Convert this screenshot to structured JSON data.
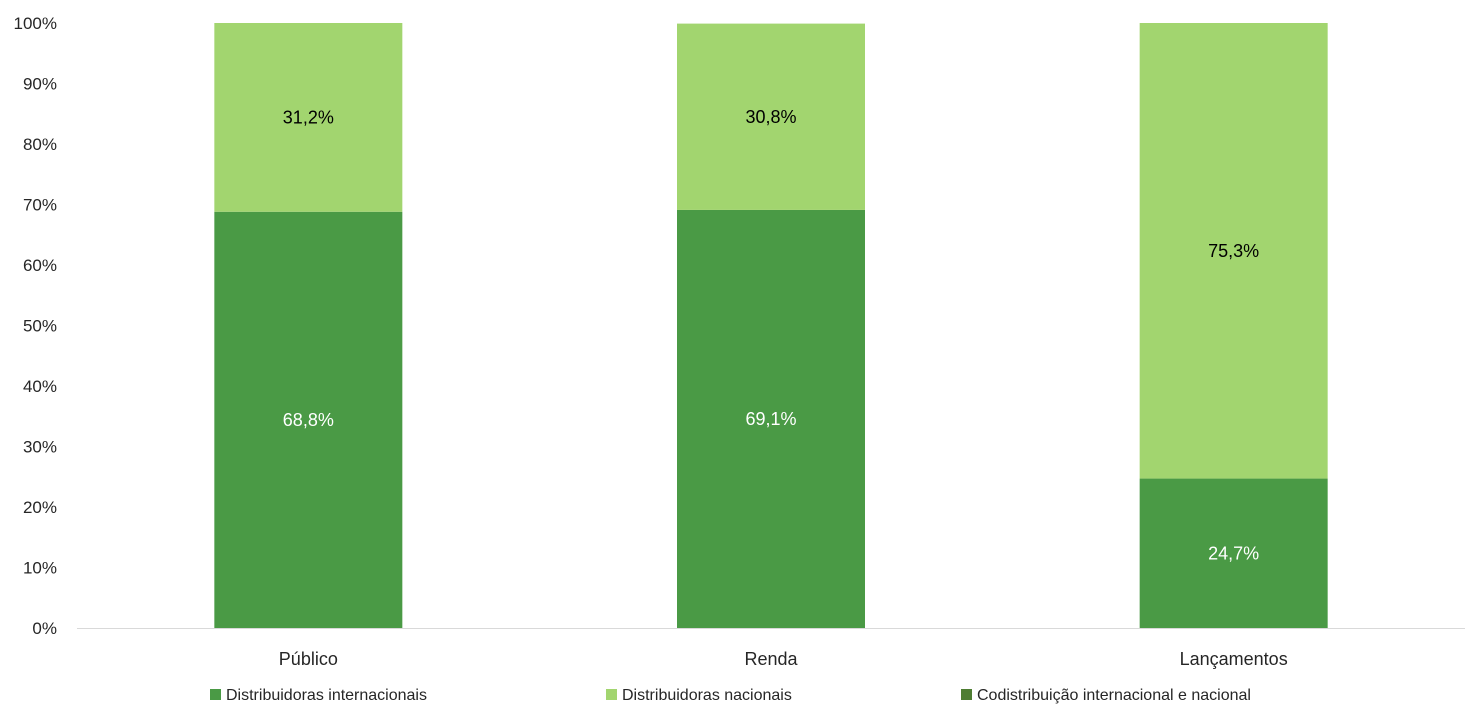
{
  "chart_data": {
    "type": "bar",
    "stacked": true,
    "percent_stacked": true,
    "categories": [
      "Público",
      "Renda",
      "Lançamentos"
    ],
    "series": [
      {
        "name": "Distribuidoras internacionais",
        "values": [
          68.8,
          69.1,
          24.7
        ],
        "labels": [
          "68,8%",
          "69,1%",
          "24,7%"
        ],
        "color": "#4a9a45",
        "label_color": "#ffffff"
      },
      {
        "name": "Distribuidoras nacionais",
        "values": [
          31.2,
          30.8,
          75.3
        ],
        "labels": [
          "31,2%",
          "30,8%",
          "75,3%"
        ],
        "color": "#a2d56f",
        "label_color": "#000000"
      },
      {
        "name": "Codistribuição internacional e nacional",
        "values": [
          0,
          0,
          0
        ],
        "labels": [
          "",
          "",
          ""
        ],
        "color": "#4e7d32",
        "label_color": "#ffffff"
      }
    ],
    "y_ticks": [
      "0%",
      "10%",
      "20%",
      "30%",
      "40%",
      "50%",
      "60%",
      "70%",
      "80%",
      "90%",
      "100%"
    ],
    "ylim": [
      0,
      100
    ],
    "grid": false,
    "legend_position": "bottom",
    "title": "",
    "xlabel": "",
    "ylabel": ""
  }
}
